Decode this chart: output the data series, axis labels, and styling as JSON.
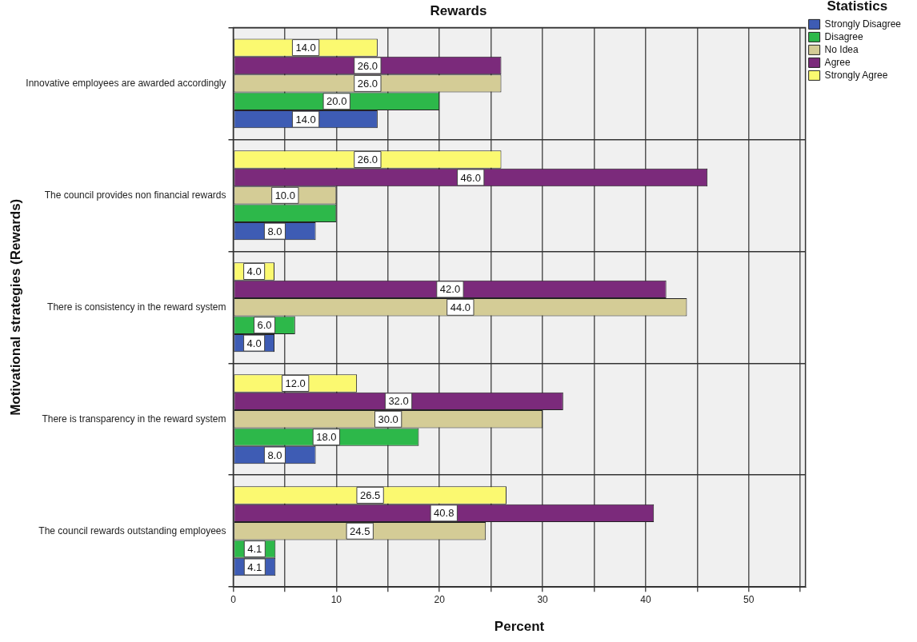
{
  "chart_data": {
    "type": "bar",
    "orientation": "horizontal",
    "title": "Rewards",
    "xlabel": "Percent",
    "ylabel": "Motivational strategies (Rewards)",
    "legend_title": "Statistics",
    "legend": "top right",
    "grid": true,
    "categories": [
      "Innovative employees are awarded accordingly",
      "The council provides non financial rewards",
      "There is consistency in the reward system",
      "There is transparency in the reward system",
      "The council rewards outstanding employees"
    ],
    "xlim": [
      0,
      55.5
    ],
    "xticks": [
      0,
      {
        "value": 5,
        "label": null
      },
      10,
      {
        "value": 15,
        "label": null
      },
      20,
      {
        "value": 25,
        "label": null
      },
      30,
      {
        "value": 35,
        "label": null
      },
      40,
      {
        "value": 45,
        "label": null
      },
      50,
      {
        "value": 55,
        "label": null
      }
    ],
    "series": [
      {
        "name": "Strongly Disagree",
        "color": "#3e5cb4",
        "values": [
          14,
          8,
          4,
          8,
          4.1
        ],
        "value_labels": [
          "14.0",
          "8.0",
          "4.0",
          "8.0",
          "4.1"
        ]
      },
      {
        "name": "Disagree",
        "color": "#2db84a",
        "values": [
          20,
          10,
          6,
          18,
          4.1
        ],
        "value_labels": [
          "20.0",
          null,
          "6.0",
          "18.0",
          "4.1"
        ]
      },
      {
        "name": "No Idea",
        "color": "#d4cc96",
        "values": [
          26,
          10,
          44,
          30,
          24.5
        ],
        "value_labels": [
          "26.0",
          "10.0",
          "44.0",
          "30.0",
          "24.5"
        ]
      },
      {
        "name": "Agree",
        "color": "#7b2a7b",
        "values": [
          26,
          46,
          42,
          32,
          40.8
        ],
        "value_labels": [
          "26.0",
          "46.0",
          "42.0",
          "32.0",
          "40.8"
        ]
      },
      {
        "name": "Strongly Agree",
        "color": "#fbf970",
        "values": [
          14,
          26,
          4,
          12,
          26.5
        ],
        "value_labels": [
          "14.0",
          "26.0",
          "4.0",
          "12.0",
          "26.5"
        ]
      }
    ]
  }
}
